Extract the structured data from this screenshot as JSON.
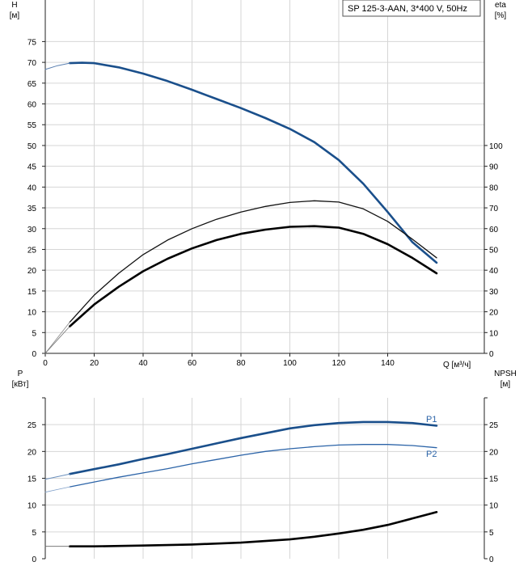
{
  "title": "SP 125-3-AAN, 3*400 V, 50Hz",
  "chart_data": [
    {
      "type": "line",
      "panel": "head-efficiency",
      "xlabel": "Q [м³/ч]",
      "ylabel_left_line1": "H",
      "ylabel_left_line2": "[м]",
      "ylabel_right_line1": "eta",
      "ylabel_right_line2": "[%]",
      "xlim": [
        0,
        180
      ],
      "x_ticks": [
        0,
        20,
        40,
        60,
        80,
        100,
        120,
        140
      ],
      "x_tick_labels": [
        "0",
        "20",
        "40",
        "60",
        "80",
        "100",
        "120",
        "140"
      ],
      "ylim_left": [
        0,
        80
      ],
      "y_ticks_left": [
        0,
        5,
        10,
        15,
        20,
        25,
        30,
        35,
        40,
        45,
        50,
        55,
        60,
        65,
        70,
        75
      ],
      "y_tick_labels_left": [
        "0",
        "5",
        "10",
        "15",
        "20",
        "25",
        "30",
        "35",
        "40",
        "45",
        "50",
        "55",
        "60",
        "65",
        "70",
        "75"
      ],
      "ylim_right": [
        0,
        160
      ],
      "y_ticks_right": [
        0,
        10,
        20,
        30,
        40,
        50,
        60,
        70,
        80,
        90,
        100
      ],
      "y_tick_labels_right": [
        "0",
        "10",
        "20",
        "30",
        "40",
        "50",
        "60",
        "70",
        "80",
        "90",
        "100"
      ],
      "grid": true,
      "series": [
        {
          "axis": "left",
          "color": "#1a4f8b",
          "width": 2.6,
          "x": [
            10,
            15,
            20,
            30,
            40,
            50,
            60,
            70,
            80,
            90,
            100,
            110,
            120,
            130,
            140,
            150,
            160
          ],
          "values": [
            69.8,
            69.9,
            69.8,
            68.8,
            67.3,
            65.5,
            63.4,
            61.2,
            59.0,
            56.6,
            54.0,
            50.8,
            46.5,
            40.8,
            34.0,
            26.8,
            21.8
          ]
        },
        {
          "axis": "left",
          "color": "#5a7fb0",
          "width": 1,
          "x": [
            0,
            5,
            10
          ],
          "values": [
            68.3,
            69.2,
            69.8
          ]
        },
        {
          "axis": "right",
          "color": "#111111",
          "width": 1.3,
          "x": [
            10,
            20,
            30,
            40,
            50,
            60,
            70,
            80,
            90,
            100,
            110,
            120,
            130,
            140,
            150,
            160
          ],
          "values": [
            15,
            28,
            38.5,
            47.5,
            54.5,
            60,
            64.5,
            68,
            70.7,
            72.6,
            73.4,
            72.8,
            69.5,
            63.5,
            55,
            46
          ]
        },
        {
          "axis": "right",
          "color": "#888888",
          "width": 0.8,
          "x": [
            0,
            5,
            10
          ],
          "values": [
            0,
            7.5,
            15
          ]
        },
        {
          "axis": "right",
          "color": "#000000",
          "width": 2.6,
          "x": [
            10,
            20,
            30,
            40,
            50,
            60,
            70,
            80,
            90,
            100,
            110,
            120,
            130,
            140,
            150,
            160
          ],
          "values": [
            13,
            23.5,
            32,
            39.5,
            45.5,
            50.5,
            54.5,
            57.5,
            59.5,
            60.9,
            61.2,
            60.5,
            57.5,
            52.5,
            46,
            38.5
          ]
        },
        {
          "axis": "right",
          "color": "#777777",
          "width": 0.8,
          "x": [
            0,
            5,
            10
          ],
          "values": [
            0,
            6.5,
            13
          ]
        }
      ]
    },
    {
      "type": "line",
      "panel": "power-npsh",
      "ylabel_left_line1": "P",
      "ylabel_left_line2": "[кВт]",
      "ylabel_right_line1": "NPSH",
      "ylabel_right_line2": "[м]",
      "xlim": [
        0,
        180
      ],
      "ylim": [
        0,
        30
      ],
      "y_ticks": [
        0,
        5,
        10,
        15,
        20,
        25
      ],
      "y_tick_labels": [
        "0",
        "5",
        "10",
        "15",
        "20",
        "25"
      ],
      "grid": true,
      "series": [
        {
          "name": "P1",
          "axis": "left",
          "color": "#1a4f8b",
          "width": 2.6,
          "x": [
            10,
            20,
            30,
            40,
            50,
            60,
            70,
            80,
            90,
            100,
            110,
            120,
            130,
            140,
            150,
            160
          ],
          "values": [
            15.8,
            16.7,
            17.6,
            18.6,
            19.5,
            20.5,
            21.5,
            22.5,
            23.4,
            24.3,
            24.9,
            25.3,
            25.5,
            25.5,
            25.3,
            24.8
          ]
        },
        {
          "axis": "left",
          "color": "#6a8fbd",
          "width": 1,
          "x": [
            0,
            5,
            10
          ],
          "values": [
            14.8,
            15.3,
            15.8
          ]
        },
        {
          "name": "P2",
          "axis": "left",
          "color": "#2c64a8",
          "width": 1.3,
          "x": [
            10,
            20,
            30,
            40,
            50,
            60,
            70,
            80,
            90,
            100,
            110,
            120,
            130,
            140,
            150,
            160
          ],
          "values": [
            13.4,
            14.3,
            15.2,
            16.0,
            16.8,
            17.7,
            18.5,
            19.3,
            20.0,
            20.5,
            20.9,
            21.2,
            21.3,
            21.3,
            21.1,
            20.7
          ]
        },
        {
          "axis": "left",
          "color": "#7f9fc8",
          "width": 0.8,
          "x": [
            0,
            5,
            10
          ],
          "values": [
            12.4,
            12.9,
            13.4
          ]
        },
        {
          "axis": "right",
          "color": "#000000",
          "width": 2.6,
          "x": [
            10,
            20,
            40,
            60,
            80,
            100,
            110,
            120,
            130,
            140,
            150,
            160
          ],
          "values": [
            2.3,
            2.3,
            2.45,
            2.65,
            3.0,
            3.6,
            4.1,
            4.7,
            5.4,
            6.3,
            7.5,
            8.7
          ]
        },
        {
          "axis": "right",
          "color": "#666666",
          "width": 0.8,
          "x": [
            0,
            10
          ],
          "values": [
            2.3,
            2.3
          ]
        }
      ]
    }
  ]
}
